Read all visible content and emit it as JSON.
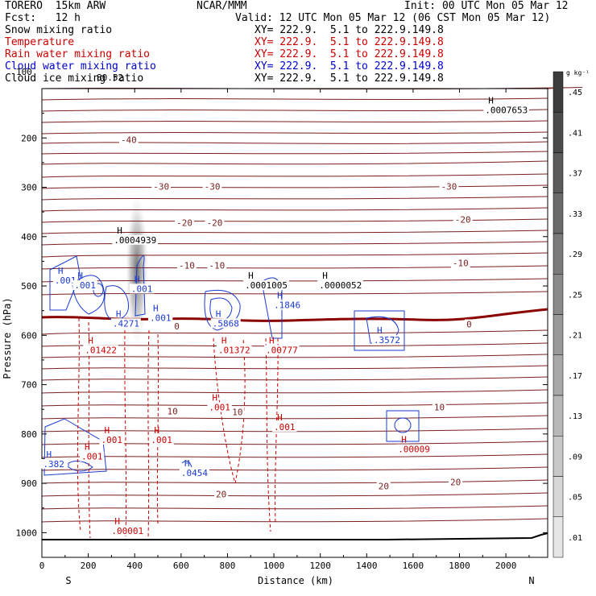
{
  "header": {
    "model": "TORERO  15km ARW",
    "center": "NCAR/MMM",
    "init": "Init: 00 UTC Mon 05 Mar 12",
    "fcst": "Fcst:   12 h",
    "valid": "Valid: 12 UTC Mon 05 Mar 12 (06 CST Mon 05 Mar 12)",
    "fields": [
      {
        "name": "Snow mixing ratio",
        "xy": "XY= 222.9.  5.1 to 222.9.149.8",
        "color": "#000000"
      },
      {
        "name": "Temperature",
        "xy": "XY= 222.9.  5.1 to 222.9.149.8",
        "color": "#cc0000"
      },
      {
        "name": "Rain water mixing ratio",
        "xy": "XY= 222.9.  5.1 to 222.9.149.8",
        "color": "#cc0000"
      },
      {
        "name": "Cloud water mixing ratio",
        "xy": "XY= 222.9.  5.1 to 222.9.149.8",
        "color": "#0000cc"
      },
      {
        "name": "Cloud ice mixing ratio",
        "xy": "XY= 222.9.  5.1 to 222.9.149.8",
        "color": "#000000"
      }
    ],
    "top_pressure_label": "100",
    "top_value": "80.52"
  },
  "chart_data": {
    "type": "contour-cross-section",
    "xlabel": "Distance (km)",
    "ylabel": "Pressure (hPa)",
    "xlim": [
      0,
      2180
    ],
    "ylim": [
      1050,
      100
    ],
    "x_ticks": [
      0,
      200,
      400,
      600,
      800,
      1000,
      1200,
      1400,
      1600,
      1800,
      2000
    ],
    "y_ticks": [
      200,
      300,
      400,
      500,
      600,
      700,
      800,
      900,
      1000
    ],
    "left_end": "S",
    "right_end": "N",
    "colorbar": {
      "unit": "g kg⁻¹",
      "labels": [
        ".45",
        ".41",
        ".37",
        ".33",
        ".29",
        ".25",
        ".21",
        ".17",
        ".13",
        ".09",
        ".05",
        ".01"
      ]
    },
    "temperature_labels": [
      {
        "x": 340,
        "p": 210,
        "text": "-40"
      },
      {
        "x": 480,
        "p": 305,
        "text": "-30"
      },
      {
        "x": 700,
        "p": 305,
        "text": "-30"
      },
      {
        "x": 1720,
        "p": 305,
        "text": "-30"
      },
      {
        "x": 580,
        "p": 378,
        "text": "-20"
      },
      {
        "x": 710,
        "p": 378,
        "text": "-20"
      },
      {
        "x": 1780,
        "p": 372,
        "text": "-20"
      },
      {
        "x": 590,
        "p": 465,
        "text": "-10"
      },
      {
        "x": 720,
        "p": 465,
        "text": "-10"
      },
      {
        "x": 1770,
        "p": 460,
        "text": "-10"
      },
      {
        "x": 570,
        "p": 588,
        "text": "0"
      },
      {
        "x": 1830,
        "p": 584,
        "text": "0"
      },
      {
        "x": 540,
        "p": 760,
        "text": "10"
      },
      {
        "x": 820,
        "p": 762,
        "text": "10"
      },
      {
        "x": 1690,
        "p": 752,
        "text": "10"
      },
      {
        "x": 750,
        "p": 928,
        "text": "20"
      },
      {
        "x": 1450,
        "p": 912,
        "text": "20"
      },
      {
        "x": 1760,
        "p": 904,
        "text": "20"
      }
    ],
    "snow_labels": [
      {
        "x": 310,
        "p": 413,
        "text": ".0004939"
      },
      {
        "x": 875,
        "p": 505,
        "text": ".0001005"
      },
      {
        "x": 1195,
        "p": 505,
        "text": ".0000052"
      },
      {
        "x": 1910,
        "p": 150,
        "text": ".0007653"
      }
    ],
    "cloud_labels": [
      {
        "x": 55,
        "p": 495,
        "text": ".001"
      },
      {
        "x": 140,
        "p": 505,
        "text": ".001"
      },
      {
        "x": 385,
        "p": 512,
        "text": ".001"
      },
      {
        "x": 465,
        "p": 571,
        "text": ".001"
      },
      {
        "x": 305,
        "p": 582,
        "text": ".4271"
      },
      {
        "x": 735,
        "p": 582,
        "text": ".5868"
      },
      {
        "x": 1000,
        "p": 545,
        "text": ".1846"
      },
      {
        "x": 1430,
        "p": 616,
        "text": ".3572"
      },
      {
        "x": 5,
        "p": 867,
        "text": ".382"
      },
      {
        "x": 600,
        "p": 885,
        "text": ".0454"
      }
    ],
    "rain_labels": [
      {
        "x": 185,
        "p": 636,
        "text": ".01422"
      },
      {
        "x": 760,
        "p": 636,
        "text": ".01372"
      },
      {
        "x": 965,
        "p": 636,
        "text": ".00777"
      },
      {
        "x": 720,
        "p": 752,
        "text": ".001"
      },
      {
        "x": 1000,
        "p": 792,
        "text": ".001"
      },
      {
        "x": 255,
        "p": 818,
        "text": ".001"
      },
      {
        "x": 470,
        "p": 818,
        "text": ".001"
      },
      {
        "x": 170,
        "p": 852,
        "text": ".001"
      },
      {
        "x": 300,
        "p": 1003,
        "text": ".00001"
      },
      {
        "x": 1535,
        "p": 837,
        "text": ".00009"
      }
    ]
  }
}
